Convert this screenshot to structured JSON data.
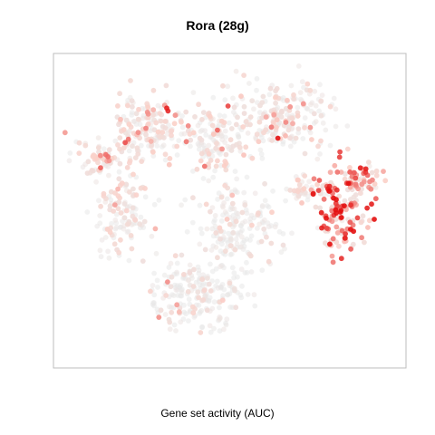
{
  "chart_data": {
    "type": "scatter",
    "title": "Rora (28g)",
    "xlabel": "Gene set activity (AUC)",
    "ylabel": "",
    "grid": false,
    "color_scale": {
      "low": "#e8e8e8",
      "mid": "#fbd0c8",
      "high": "#e31010"
    },
    "clusters": [
      {
        "cx": 0.12,
        "cy": 0.67,
        "rx": 0.07,
        "ry": 0.06,
        "n": 70,
        "act": 0.35
      },
      {
        "cx": 0.25,
        "cy": 0.78,
        "rx": 0.11,
        "ry": 0.1,
        "n": 170,
        "act": 0.3
      },
      {
        "cx": 0.18,
        "cy": 0.48,
        "rx": 0.08,
        "ry": 0.12,
        "n": 120,
        "act": 0.2
      },
      {
        "cx": 0.45,
        "cy": 0.74,
        "rx": 0.1,
        "ry": 0.12,
        "n": 150,
        "act": 0.18
      },
      {
        "cx": 0.66,
        "cy": 0.82,
        "rx": 0.13,
        "ry": 0.11,
        "n": 200,
        "act": 0.22
      },
      {
        "cx": 0.52,
        "cy": 0.45,
        "rx": 0.13,
        "ry": 0.13,
        "n": 170,
        "act": 0.08
      },
      {
        "cx": 0.4,
        "cy": 0.22,
        "rx": 0.14,
        "ry": 0.11,
        "n": 220,
        "act": 0.05
      },
      {
        "cx": 0.83,
        "cy": 0.5,
        "rx": 0.07,
        "ry": 0.13,
        "n": 150,
        "act": 0.75
      },
      {
        "cx": 0.9,
        "cy": 0.6,
        "rx": 0.06,
        "ry": 0.04,
        "n": 40,
        "act": 0.55
      },
      {
        "cx": 0.72,
        "cy": 0.57,
        "rx": 0.05,
        "ry": 0.04,
        "n": 40,
        "act": 0.35
      }
    ]
  }
}
